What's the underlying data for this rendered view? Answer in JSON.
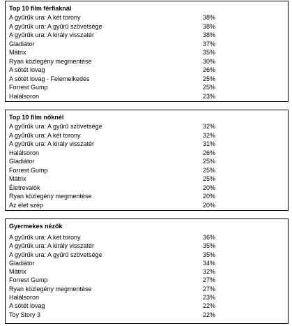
{
  "sections": [
    {
      "title": "Top 10 film férfiaknál",
      "rows": [
        {
          "name": "A gyűrűk ura: A két torony",
          "pct": "38%"
        },
        {
          "name": "A gyűrűk ura: A gyűrű szövetsége",
          "pct": "38%"
        },
        {
          "name": "A gyűrűk ura: A király visszatér",
          "pct": "38%"
        },
        {
          "name": "Gladiátor",
          "pct": "37%"
        },
        {
          "name": "Mátrix",
          "pct": "35%"
        },
        {
          "name": "Ryan közlegény megmentése",
          "pct": "30%"
        },
        {
          "name": "A sötét lovag",
          "pct": "26%"
        },
        {
          "name": "A sötét lovag - Felemelkedés",
          "pct": "25%"
        },
        {
          "name": "Forrest Gump",
          "pct": "25%"
        },
        {
          "name": "Halálsoron",
          "pct": "23%"
        }
      ]
    },
    {
      "title": "Top 10 film nőknél",
      "rows": [
        {
          "name": "A gyűrűk ura: A gyűrű szövetsége",
          "pct": "32%"
        },
        {
          "name": "A gyűrűk ura: A két torony",
          "pct": "32%"
        },
        {
          "name": "A gyűrűk ura: A király visszatér",
          "pct": "31%"
        },
        {
          "name": "Halálsoron",
          "pct": "26%"
        },
        {
          "name": "Gladiátor",
          "pct": "25%"
        },
        {
          "name": "Forrest Gump",
          "pct": "25%"
        },
        {
          "name": "Mátrix",
          "pct": "25%"
        },
        {
          "name": "Életrevalók",
          "pct": "20%"
        },
        {
          "name": "Ryan közlegény megmentése",
          "pct": "20%"
        },
        {
          "name": "Az élet szép",
          "pct": "20%"
        }
      ]
    },
    {
      "title": "Gyermekes nézők",
      "rows": [
        {
          "name": "A gyűrűk ura: A két torony",
          "pct": "36%"
        },
        {
          "name": "A gyűrűk ura: A király visszatér",
          "pct": "35%"
        },
        {
          "name": "A gyűrűk ura: A gyűrű szövetsége",
          "pct": "35%"
        },
        {
          "name": "Gladiátor",
          "pct": "34%"
        },
        {
          "name": "Mátrix",
          "pct": "32%"
        },
        {
          "name": "Forrest Gump",
          "pct": "27%"
        },
        {
          "name": "Ryan közlegény megmentése",
          "pct": "27%"
        },
        {
          "name": "Halálsoron",
          "pct": "23%"
        },
        {
          "name": "A sötét lovag",
          "pct": "22%"
        },
        {
          "name": "Toy Story 3",
          "pct": "22%"
        }
      ]
    }
  ]
}
